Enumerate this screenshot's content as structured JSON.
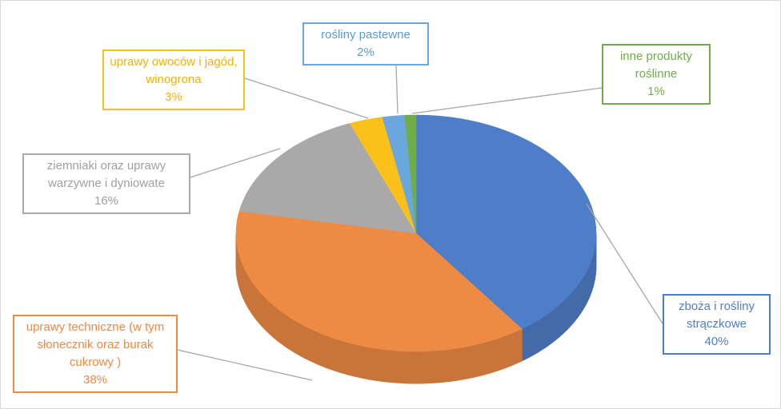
{
  "chart_data": {
    "type": "pie3d",
    "categories": [
      "zboża i rośliny strączkowe",
      "uprawy techniczne (w tym słonecznik oraz burak cukrowy )",
      "ziemniaki oraz uprawy warzywne i dyniowate",
      "uprawy owoców i jagód, winogrona",
      "rośliny pastewne",
      "inne produkty roślinne"
    ],
    "values": [
      40,
      38,
      16,
      3,
      2,
      1
    ],
    "value_labels": [
      "40%",
      "38%",
      "16%",
      "3%",
      "2%",
      "1%"
    ],
    "colors": [
      "#4f7ec8",
      "#ed8a43",
      "#a9a9a9",
      "#fcc01a",
      "#6aa7dc",
      "#71ad47"
    ]
  }
}
